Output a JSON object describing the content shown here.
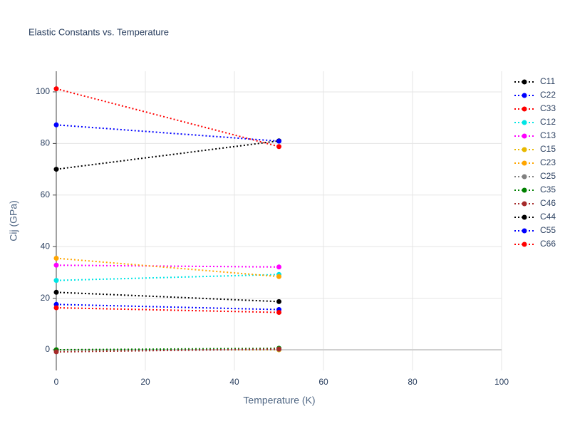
{
  "chart_data": {
    "type": "line",
    "title": "Elastic Constants vs. Temperature",
    "x_label": "Temperature (K)",
    "y_label": "Cij (GPa)",
    "x": [
      0,
      50
    ],
    "series": [
      {
        "name": "C11",
        "color": "#000000",
        "values": [
          70,
          81
        ]
      },
      {
        "name": "C22",
        "color": "#0000ff",
        "values": [
          87.2,
          80.9
        ]
      },
      {
        "name": "C33",
        "color": "#ff0000",
        "values": [
          101.2,
          78.8
        ]
      },
      {
        "name": "C12",
        "color": "#00e5e5",
        "values": [
          26.9,
          29.2
        ]
      },
      {
        "name": "C13",
        "color": "#ff00ff",
        "values": [
          32.8,
          32.1
        ]
      },
      {
        "name": "C15",
        "color": "#e8b800",
        "values": [
          0,
          0
        ]
      },
      {
        "name": "C23",
        "color": "#ffa500",
        "values": [
          35.5,
          28.4
        ]
      },
      {
        "name": "C25",
        "color": "#808080",
        "values": [
          0,
          0.2
        ]
      },
      {
        "name": "C35",
        "color": "#008000",
        "values": [
          0,
          0.6
        ]
      },
      {
        "name": "C46",
        "color": "#a52a2a",
        "values": [
          -0.8,
          0.3
        ]
      },
      {
        "name": "C44",
        "color": "#000000",
        "values": [
          22.3,
          18.7
        ]
      },
      {
        "name": "C55",
        "color": "#0000ff",
        "values": [
          17.6,
          15.6
        ]
      },
      {
        "name": "C66",
        "color": "#ff0000",
        "values": [
          16.3,
          14.5
        ]
      }
    ],
    "xlim": [
      0,
      100
    ],
    "xticks": [
      0,
      20,
      40,
      60,
      80,
      100
    ],
    "ylim": [
      -8,
      108
    ],
    "yticks": [
      0,
      20,
      40,
      60,
      80,
      100
    ],
    "grid": true,
    "legend": "top-right"
  }
}
